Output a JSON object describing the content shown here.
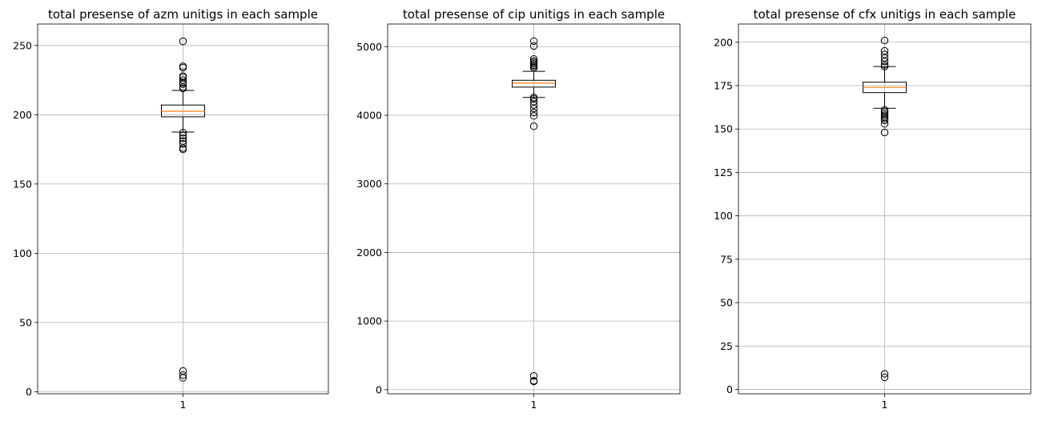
{
  "chart_data": [
    {
      "type": "box",
      "title": "total presense of azm unitigs in each sample",
      "xlabel": "",
      "ylabel": "",
      "categories": [
        "1"
      ],
      "ylim": [
        -1.5,
        265.5
      ],
      "yticks": [
        0,
        50,
        100,
        150,
        200,
        250
      ],
      "grid": true,
      "box": {
        "q1": 198.5,
        "median": 202.5,
        "q3": 207,
        "whisker_low": 187.5,
        "whisker_high": 217.5,
        "median_color": "#ff7f0e",
        "fliers": [
          253,
          235,
          234,
          228,
          227,
          225,
          223,
          222,
          220,
          219,
          187,
          185,
          183,
          181,
          179,
          176,
          175,
          15,
          12,
          10
        ]
      }
    },
    {
      "type": "box",
      "title": "total presense of cip unitigs in each sample",
      "xlabel": "",
      "ylabel": "",
      "categories": [
        "1"
      ],
      "ylim": [
        -60,
        5330
      ],
      "yticks": [
        0,
        1000,
        2000,
        3000,
        4000,
        5000
      ],
      "grid": true,
      "box": {
        "q1": 4410,
        "median": 4470,
        "q3": 4510,
        "whisker_low": 4260,
        "whisker_high": 4640,
        "median_color": "#ff7f0e",
        "fliers": [
          5080,
          5010,
          4820,
          4790,
          4770,
          4750,
          4730,
          4710,
          4690,
          4260,
          4240,
          4200,
          4150,
          4100,
          4040,
          3990,
          3840,
          200,
          130,
          120
        ]
      }
    },
    {
      "type": "box",
      "title": "total presense of cfx unitigs in each sample",
      "xlabel": "",
      "ylabel": "",
      "categories": [
        "1"
      ],
      "ylim": [
        -2.5,
        210.5
      ],
      "yticks": [
        0,
        25,
        50,
        75,
        100,
        125,
        150,
        175,
        200
      ],
      "grid": true,
      "box": {
        "q1": 171,
        "median": 174,
        "q3": 177,
        "whisker_low": 162,
        "whisker_high": 186,
        "median_color": "#ff7f0e",
        "fliers": [
          201,
          195,
          193,
          191,
          189,
          187,
          186,
          161,
          160,
          159,
          158,
          157,
          156,
          155,
          153,
          148,
          9,
          7
        ]
      }
    }
  ]
}
